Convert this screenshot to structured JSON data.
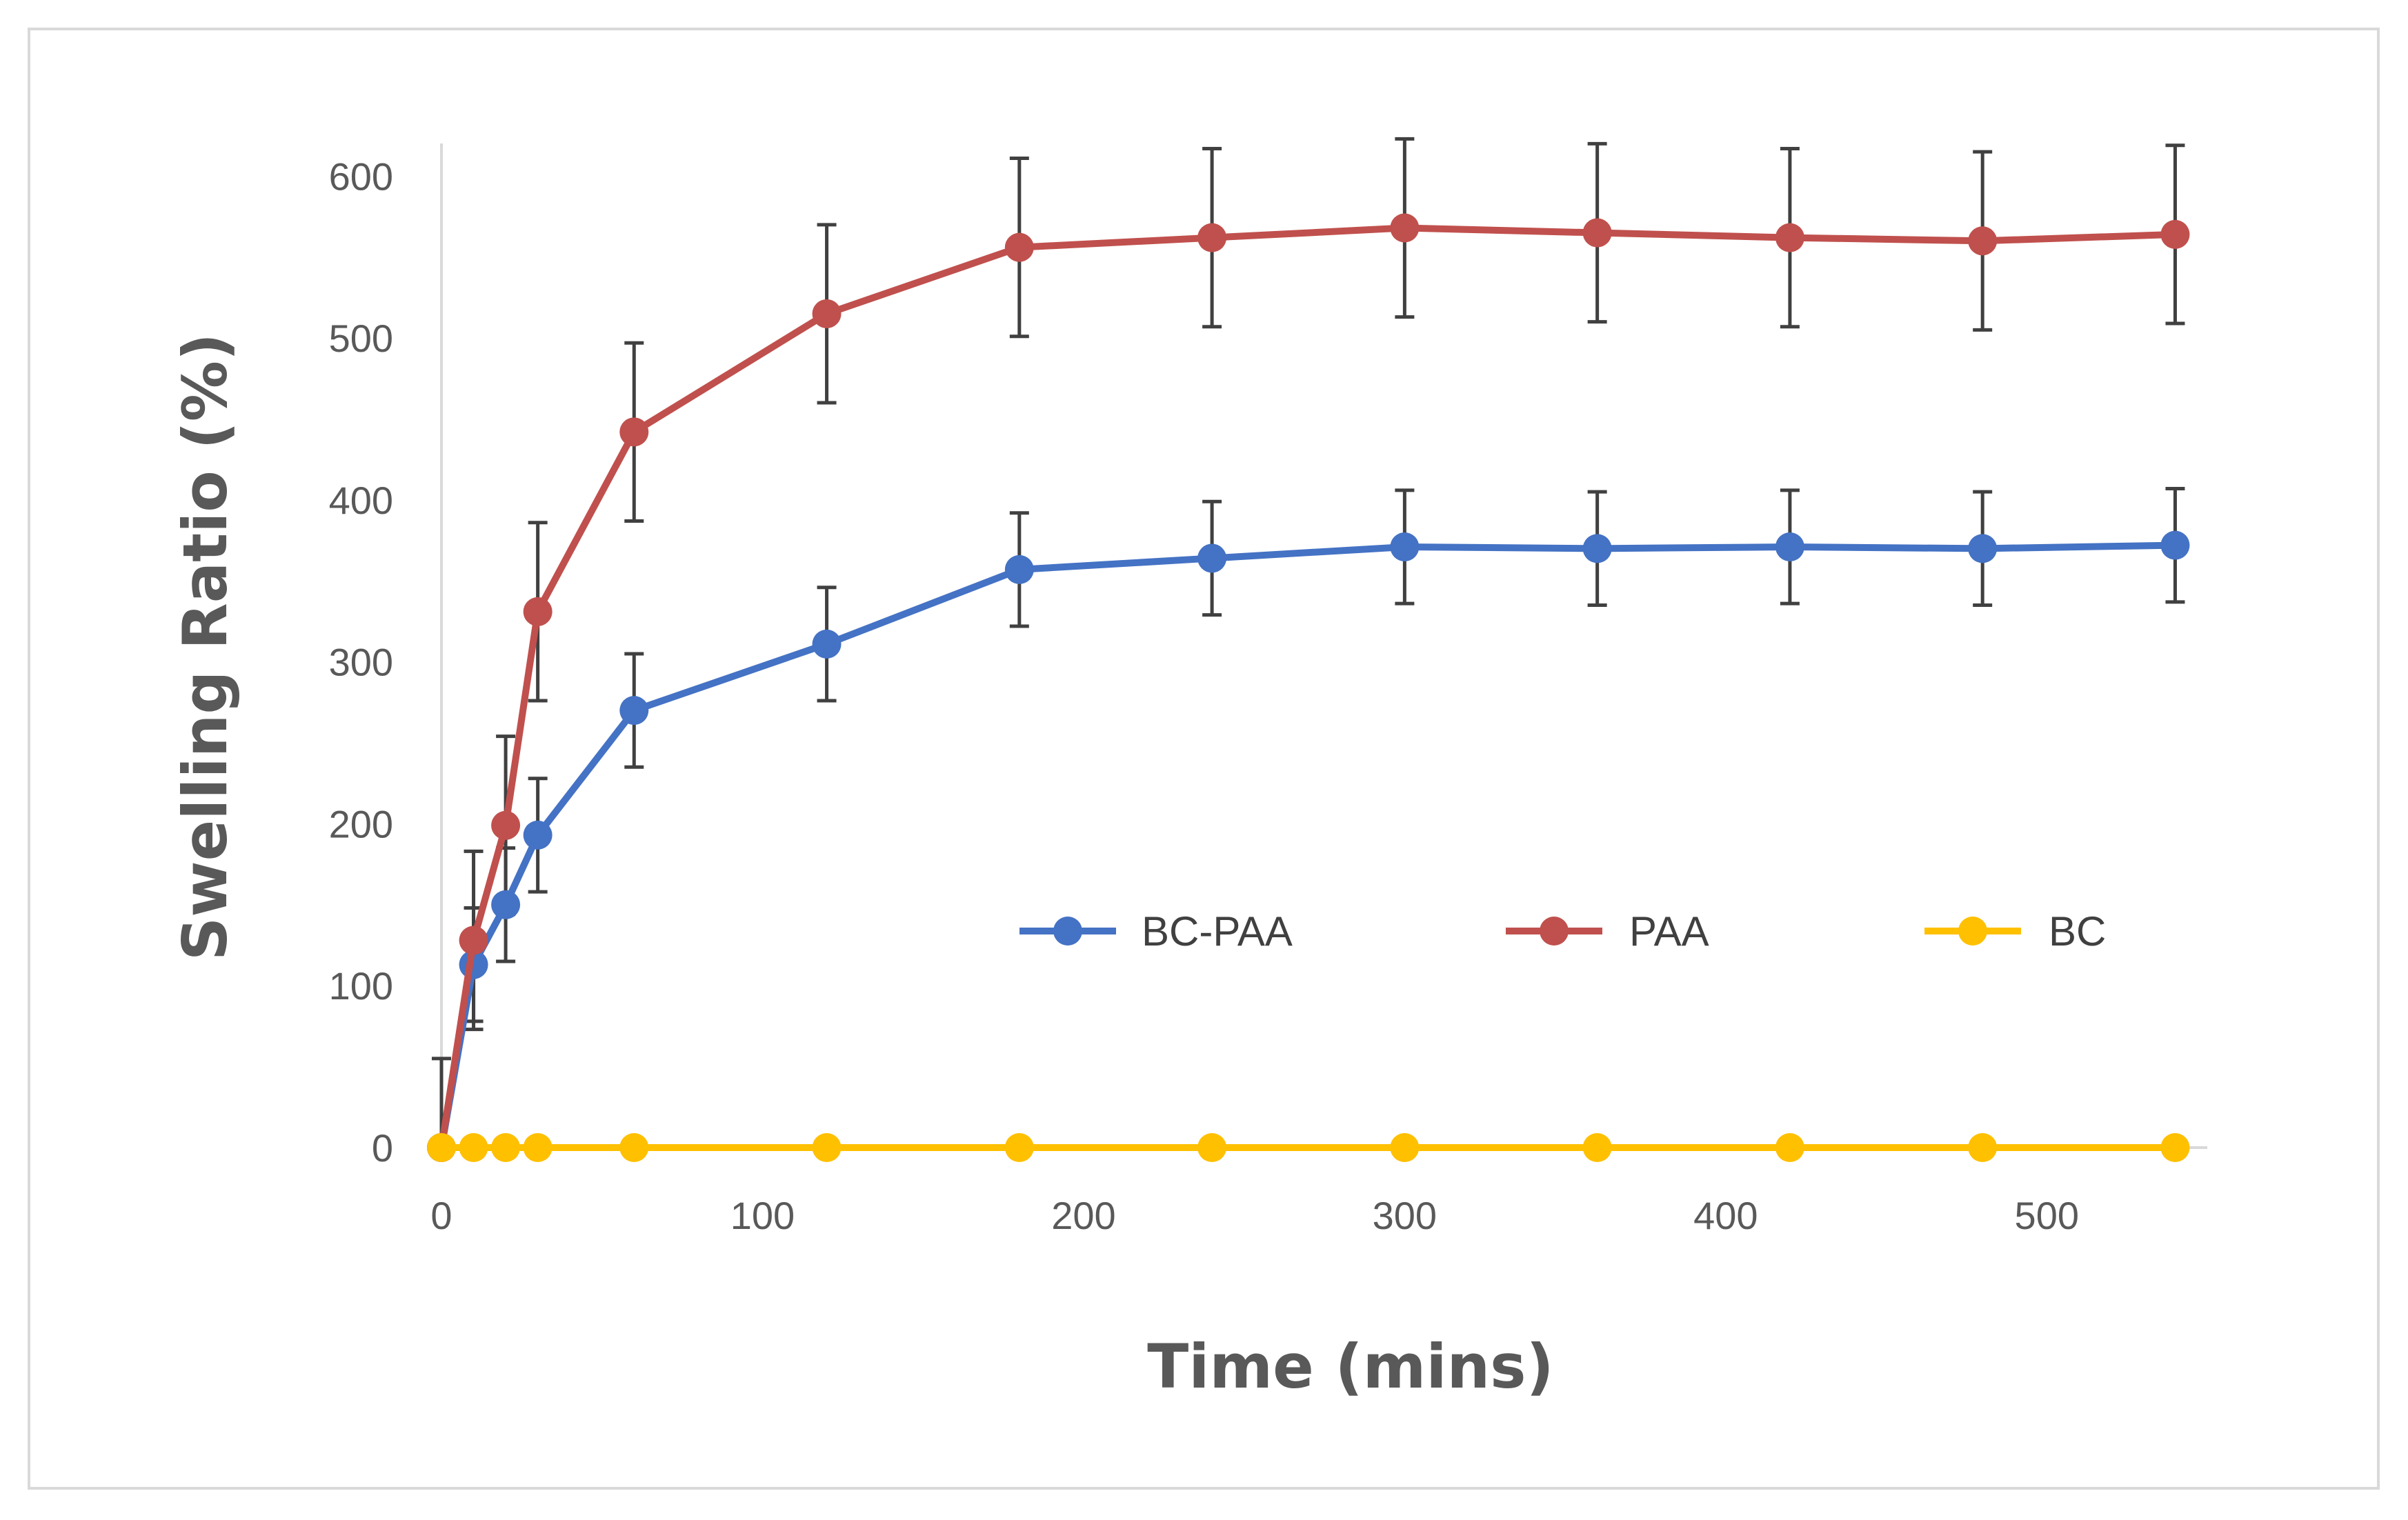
{
  "chart_data": {
    "type": "line",
    "title": "",
    "xlabel": "Time (mins)",
    "ylabel": "Swelling Ratio (%)",
    "xlim": [
      0,
      550
    ],
    "ylim": [
      0,
      650
    ],
    "x_ticks": [
      0,
      100,
      200,
      300,
      400,
      500
    ],
    "y_ticks": [
      0,
      100,
      200,
      300,
      400,
      500,
      600
    ],
    "grid": false,
    "legend_position": "center-right",
    "x": [
      0,
      10,
      20,
      30,
      60,
      120,
      180,
      240,
      300,
      360,
      420,
      480,
      540
    ],
    "series": [
      {
        "name": "BC-PAA",
        "color": "#4472C4",
        "values": [
          0,
          113,
          150,
          193,
          270,
          311,
          357,
          364,
          371,
          370,
          371,
          370,
          372
        ],
        "error": [
          0,
          35,
          35,
          35,
          35,
          35,
          35,
          35,
          35,
          35,
          35,
          35,
          35
        ]
      },
      {
        "name": "PAA",
        "color": "#C0504D",
        "values": [
          0,
          128,
          199,
          331,
          442,
          515,
          556,
          562,
          568,
          565,
          562,
          560,
          564
        ],
        "error": [
          55,
          55,
          55,
          55,
          55,
          55,
          55,
          55,
          55,
          55,
          55,
          55,
          55
        ]
      },
      {
        "name": "BC",
        "color": "#FFC000",
        "values": [
          0,
          0,
          0,
          0,
          0,
          0,
          0,
          0,
          0,
          0,
          0,
          0,
          0
        ],
        "error": null
      }
    ]
  }
}
